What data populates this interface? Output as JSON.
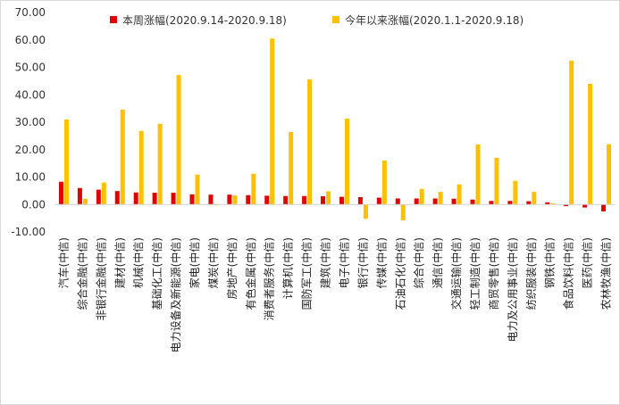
{
  "chart_data": {
    "type": "bar",
    "categories": [
      "汽车(中信)",
      "综合金融(中信)",
      "非银行金融(中信)",
      "建材(中信)",
      "机械(中信)",
      "基础化工(中信)",
      "电力设备及新能源(中信)",
      "家电(中信)",
      "煤炭(中信)",
      "房地产(中信)",
      "有色金属(中信)",
      "消费者服务(中信)",
      "计算机(中信)",
      "国防军工(中信)",
      "建筑(中信)",
      "电子(中信)",
      "银行(中信)",
      "传媒(中信)",
      "石油石化(中信)",
      "综合(中信)",
      "通信(中信)",
      "交通运输(中信)",
      "轻工制造(中信)",
      "商贸零售(中信)",
      "电力及公用事业(中信)",
      "纺织服装(中信)",
      "钢铁(中信)",
      "食品饮料(中信)",
      "医药(中信)",
      "农林牧渔(中信)"
    ],
    "series": [
      {
        "name": "本周涨幅(2020.9.14-2020.9.18)",
        "color": "#e00000",
        "values": [
          8.3,
          6.0,
          5.4,
          4.9,
          4.4,
          4.3,
          4.3,
          3.7,
          3.6,
          3.6,
          3.4,
          3.2,
          3.1,
          3.1,
          3.0,
          2.8,
          2.7,
          2.5,
          2.2,
          2.2,
          2.2,
          2.1,
          1.8,
          1.3,
          1.3,
          1.2,
          0.8,
          -0.6,
          -1.1,
          -2.5
        ]
      },
      {
        "name": "今年以来涨幅(2020.1.1-2020.9.18)",
        "color": "#ffc000",
        "values": [
          31.0,
          2.1,
          8.0,
          34.6,
          26.8,
          29.4,
          47.2,
          10.9,
          -0.3,
          3.3,
          11.2,
          60.5,
          26.4,
          45.6,
          4.8,
          31.3,
          -5.2,
          16.0,
          -5.8,
          5.7,
          4.6,
          7.3,
          21.9,
          17.0,
          8.6,
          4.6,
          0.4,
          52.4,
          44.0,
          22.0
        ]
      }
    ],
    "y_ticks": [
      "70.00",
      "60.00",
      "50.00",
      "40.00",
      "30.00",
      "20.00",
      "10.00",
      "0.00",
      "-10.00"
    ],
    "ylim": [
      -10,
      70
    ],
    "grid": false,
    "legend_position": "top"
  }
}
